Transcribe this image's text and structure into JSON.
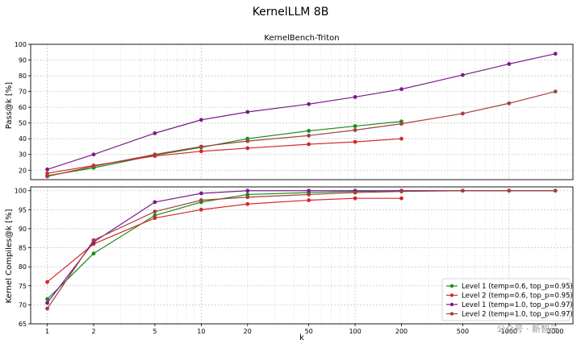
{
  "figure": {
    "title": "KernelLLM 8B",
    "watermark": "公众号 · 新智元"
  },
  "chart_data": [
    {
      "type": "line",
      "title": "KernelBench-Triton",
      "xlabel": "",
      "ylabel": "Pass@k [%]",
      "xscale": "log",
      "xlim": [
        0.78,
        2600
      ],
      "ylim": [
        14,
        100
      ],
      "yticks": [
        20,
        30,
        40,
        50,
        60,
        70,
        80,
        90,
        100
      ],
      "grid": true,
      "series": [
        {
          "name": "Level 1 (temp=0.6, top_p=0.95)",
          "color": "#1a8a1a",
          "x": [
            1,
            2,
            5,
            10,
            20,
            50,
            100,
            200
          ],
          "y": [
            16.5,
            21.5,
            29.5,
            34.5,
            40,
            45,
            48,
            51
          ]
        },
        {
          "name": "Level 2 (temp=0.6, top_p=0.95)",
          "color": "#d62728",
          "x": [
            1,
            2,
            5,
            10,
            20,
            50,
            100,
            200
          ],
          "y": [
            18,
            23,
            29,
            32,
            34,
            36.5,
            38,
            40
          ]
        },
        {
          "name": "Level 1 (temp=1.0, top_p=0.97)",
          "color": "#7b1a8a",
          "x": [
            1,
            2,
            5,
            10,
            20,
            50,
            100,
            200,
            500,
            1000,
            2000
          ],
          "y": [
            20.5,
            30,
            43.5,
            52,
            57,
            62,
            66.5,
            71.5,
            80.5,
            87.5,
            94
          ]
        },
        {
          "name": "Level 2 (temp=1.0, top_p=0.97)",
          "color": "#a0413c",
          "x": [
            1,
            2,
            5,
            10,
            20,
            50,
            100,
            200,
            500,
            1000,
            2000
          ],
          "y": [
            16,
            22.5,
            30,
            35,
            38.5,
            42,
            45.5,
            49.5,
            56,
            62.5,
            70
          ]
        }
      ]
    },
    {
      "type": "line",
      "title": "",
      "xlabel": "k",
      "ylabel": "Kernel Compiles@k [%]",
      "xscale": "log",
      "xlim": [
        0.78,
        2600
      ],
      "ylim": [
        65,
        101
      ],
      "xticks": [
        1,
        2,
        5,
        10,
        20,
        50,
        100,
        200,
        500,
        1000,
        2000
      ],
      "yticks": [
        65,
        70,
        75,
        80,
        85,
        90,
        95,
        100
      ],
      "grid": true,
      "legend": "lower-right",
      "series": [
        {
          "name": "Level 1 (temp=0.6, top_p=0.95)",
          "color": "#1a8a1a",
          "x": [
            1,
            2,
            5,
            10,
            20,
            50,
            100,
            200
          ],
          "y": [
            71.5,
            83.5,
            93.5,
            97,
            99,
            99.5,
            99.8,
            100
          ]
        },
        {
          "name": "Level 2 (temp=0.6, top_p=0.95)",
          "color": "#d62728",
          "x": [
            1,
            2,
            5,
            10,
            20,
            50,
            100,
            200
          ],
          "y": [
            76,
            86,
            92.8,
            95,
            96.5,
            97.5,
            98,
            98
          ]
        },
        {
          "name": "Level 1 (temp=1.0, top_p=0.97)",
          "color": "#7b1a8a",
          "x": [
            1,
            2,
            5,
            10,
            20,
            50,
            100,
            200,
            500,
            1000,
            2000
          ],
          "y": [
            70.5,
            86.5,
            97,
            99.3,
            100,
            100,
            100,
            100,
            100,
            100,
            100
          ]
        },
        {
          "name": "Level 2 (temp=1.0, top_p=0.97)",
          "color": "#a0413c",
          "x": [
            1,
            2,
            5,
            10,
            20,
            50,
            100,
            200,
            500,
            1000,
            2000
          ],
          "y": [
            69,
            87,
            94.5,
            97.5,
            98.3,
            99,
            99.5,
            99.8,
            100,
            100,
            100
          ]
        }
      ]
    }
  ]
}
